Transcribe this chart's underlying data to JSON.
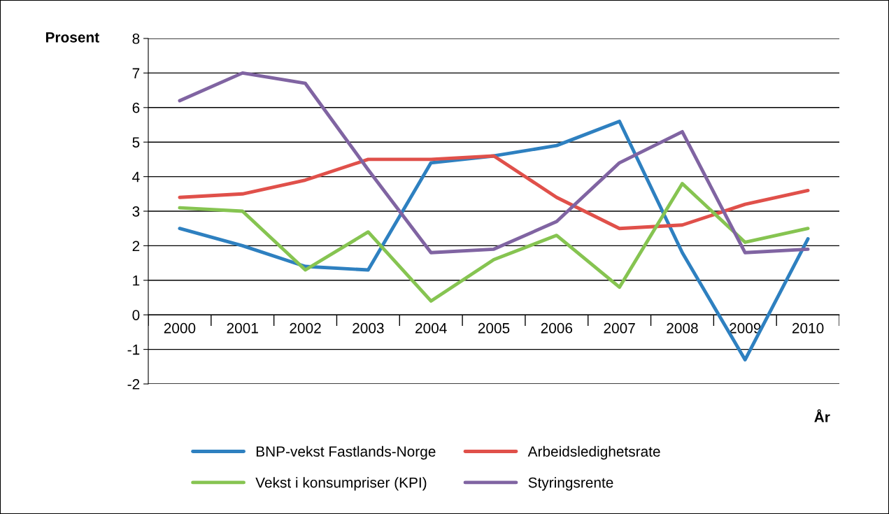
{
  "chart_data": {
    "type": "line",
    "ylabel": "Prosent",
    "xlabel": "År",
    "categories": [
      "2000",
      "2001",
      "2002",
      "2003",
      "2004",
      "2005",
      "2006",
      "2007",
      "2008",
      "2009",
      "2010"
    ],
    "series": [
      {
        "name": "BNP-vekst Fastlands-Norge",
        "color": "#2e80c0",
        "values": [
          2.5,
          2.0,
          1.4,
          1.3,
          4.4,
          4.6,
          4.9,
          5.6,
          1.8,
          -1.3,
          2.2
        ]
      },
      {
        "name": "Arbeidsledighetsrate",
        "color": "#e0504a",
        "values": [
          3.4,
          3.5,
          3.9,
          4.5,
          4.5,
          4.6,
          3.4,
          2.5,
          2.6,
          3.2,
          3.6
        ]
      },
      {
        "name": "Vekst i konsumpriser (KPI)",
        "color": "#86c451",
        "values": [
          3.1,
          3.0,
          1.3,
          2.4,
          0.4,
          1.6,
          2.3,
          0.8,
          3.8,
          2.1,
          2.5
        ]
      },
      {
        "name": "Styringsrente",
        "color": "#8064a2",
        "values": [
          6.2,
          7.0,
          6.7,
          4.2,
          1.8,
          1.9,
          2.7,
          4.4,
          5.3,
          1.8,
          1.9
        ]
      }
    ],
    "ylim": [
      -2,
      8
    ],
    "yticks": [
      -2,
      -1,
      0,
      1,
      2,
      3,
      4,
      5,
      6,
      7,
      8
    ],
    "grid": "y",
    "legend": "bottom",
    "marker": "none",
    "line_style": "solid"
  }
}
